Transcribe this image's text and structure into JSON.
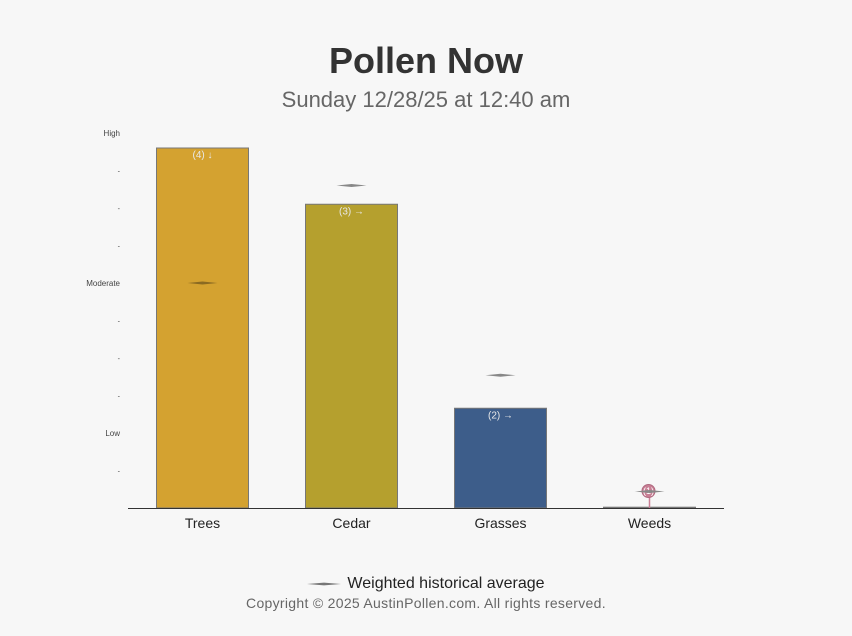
{
  "header": {
    "title": "Pollen Now",
    "subtitle": "Sunday 12/28/25 at 12:40 am"
  },
  "chart_data": {
    "type": "bar",
    "categories": [
      "Trees",
      "Cedar",
      "Grasses",
      "Weeds"
    ],
    "values": [
      4.8,
      4.05,
      1.33,
      0.01
    ],
    "labels": [
      "(4) ↓",
      "(3) →",
      "(2) →",
      "(1)"
    ],
    "historical_average": [
      3.0,
      4.3,
      1.77,
      0.22
    ],
    "colors": [
      "#d4a230",
      "#b5a02e",
      "#3d5d8a",
      "#c97f95"
    ],
    "ylim": [
      0,
      5
    ],
    "yticks": [
      {
        "value": 0.5,
        "label": "-"
      },
      {
        "value": 1.0,
        "label": "Low"
      },
      {
        "value": 1.5,
        "label": "-"
      },
      {
        "value": 2.0,
        "label": "-"
      },
      {
        "value": 2.5,
        "label": "-"
      },
      {
        "value": 3.0,
        "label": "Moderate"
      },
      {
        "value": 3.5,
        "label": "-"
      },
      {
        "value": 4.0,
        "label": "-"
      },
      {
        "value": 4.5,
        "label": "-"
      },
      {
        "value": 5.0,
        "label": "High"
      }
    ],
    "grid": false,
    "legend": {
      "position": "bottom",
      "label": "Weighted historical average"
    }
  },
  "footer": {
    "copyright": "Copyright © 2025 AustinPollen.com.  All rights reserved."
  }
}
